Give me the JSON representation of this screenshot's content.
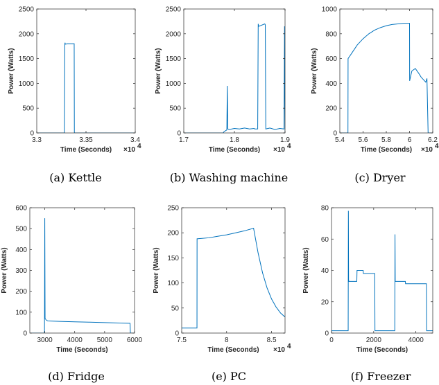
{
  "figure": {
    "series_color": "#0072bd",
    "axis_color": "#262626"
  },
  "chart_data": [
    {
      "type": "line",
      "caption": "(a)  Kettle",
      "title": "",
      "xlabel": "Time (Seconds)",
      "ylabel": "Power (Watts)",
      "x_exponent": "×10",
      "x_exponent_power": "4",
      "xlim": [
        3.3,
        3.4
      ],
      "ylim": [
        0,
        2500
      ],
      "xticks": [
        3.3,
        3.35,
        3.4
      ],
      "xtick_labels": [
        "3.3",
        "3.35",
        "3.4"
      ],
      "yticks": [
        0,
        500,
        1000,
        1500,
        2000,
        2500
      ],
      "ytick_labels": [
        "0",
        "500",
        "1000",
        "1500",
        "2000",
        "2500"
      ],
      "series": [
        {
          "x": [
            3.3,
            3.328,
            3.3285,
            3.3287,
            3.329,
            3.331,
            3.338,
            3.3382,
            3.4
          ],
          "y": [
            0,
            0,
            1800,
            1820,
            1790,
            1800,
            1800,
            0,
            0
          ]
        }
      ]
    },
    {
      "type": "line",
      "caption": "(b)  Washing machine",
      "title": "",
      "xlabel": "Time (Seconds)",
      "ylabel": "Power (Watts)",
      "x_exponent": "×10",
      "x_exponent_power": "4",
      "xlim": [
        1.7,
        1.9
      ],
      "ylim": [
        0,
        2500
      ],
      "xticks": [
        1.7,
        1.8,
        1.9
      ],
      "xtick_labels": [
        "1.7",
        "1.8",
        "1.9"
      ],
      "yticks": [
        0,
        500,
        1000,
        1500,
        2000,
        2500
      ],
      "ytick_labels": [
        "0",
        "500",
        "1000",
        "1500",
        "2000",
        "2500"
      ],
      "series": [
        {
          "x": [
            1.7,
            1.778,
            1.779,
            1.78,
            1.785,
            1.786,
            1.787,
            1.79,
            1.8,
            1.81,
            1.82,
            1.83,
            1.839,
            1.84,
            1.846,
            1.847,
            1.848,
            1.86,
            1.861,
            1.862,
            1.87,
            1.88,
            1.89,
            1.898,
            1.899,
            1.9
          ],
          "y": [
            0,
            0,
            20,
            30,
            60,
            950,
            80,
            70,
            90,
            80,
            100,
            80,
            90,
            80,
            80,
            2200,
            2150,
            2200,
            2180,
            80,
            100,
            70,
            90,
            80,
            2150,
            0
          ]
        }
      ]
    },
    {
      "type": "line",
      "caption": "(c)  Dryer",
      "title": "",
      "xlabel": "Time (Seconds)",
      "ylabel": "Power (Watts)",
      "x_exponent": "×10",
      "x_exponent_power": "4",
      "xlim": [
        5.4,
        6.2
      ],
      "ylim": [
        0,
        1000
      ],
      "xticks": [
        5.4,
        5.6,
        5.8,
        6.0,
        6.2
      ],
      "xtick_labels": [
        "5.4",
        "5.6",
        "5.8",
        "6",
        "6.2"
      ],
      "yticks": [
        0,
        200,
        400,
        600,
        800,
        1000
      ],
      "ytick_labels": [
        "0",
        "200",
        "400",
        "600",
        "800",
        "1000"
      ],
      "series": [
        {
          "x": [
            5.4,
            5.47,
            5.471,
            5.5,
            5.55,
            5.6,
            5.65,
            5.7,
            5.75,
            5.8,
            5.85,
            5.9,
            5.95,
            6.0,
            6.001,
            6.02,
            6.05,
            6.08,
            6.1,
            6.12,
            6.14,
            6.15,
            6.16,
            6.2
          ],
          "y": [
            0,
            0,
            600,
            640,
            710,
            760,
            800,
            830,
            850,
            865,
            875,
            880,
            885,
            885,
            420,
            500,
            520,
            480,
            450,
            430,
            410,
            440,
            0,
            0
          ]
        }
      ]
    },
    {
      "type": "line",
      "caption": "(d)  Fridge",
      "title": "",
      "xlabel": "Time (Seconds)",
      "ylabel": "Power (Watts)",
      "x_exponent": "",
      "x_exponent_power": "",
      "xlim": [
        2500,
        6000
      ],
      "ylim": [
        0,
        600
      ],
      "xticks": [
        3000,
        4000,
        5000,
        6000
      ],
      "xtick_labels": [
        "3000",
        "4000",
        "5000",
        "6000"
      ],
      "yticks": [
        0,
        100,
        200,
        300,
        400,
        500,
        600
      ],
      "ytick_labels": [
        "0",
        "100",
        "200",
        "300",
        "400",
        "500",
        "600"
      ],
      "series": [
        {
          "x": [
            2500,
            2990,
            3000,
            3010,
            3050,
            3100,
            3500,
            4000,
            4500,
            5000,
            5500,
            5850,
            5860,
            6000
          ],
          "y": [
            0,
            0,
            550,
            70,
            62,
            58,
            56,
            54,
            52,
            50,
            48,
            47,
            0,
            0
          ]
        }
      ]
    },
    {
      "type": "line",
      "caption": "(e)  PC",
      "title": "",
      "xlabel": "Time (Seconds)",
      "ylabel": "Power (Watts)",
      "x_exponent": "×10",
      "x_exponent_power": "4",
      "xlim": [
        7.5,
        8.65
      ],
      "ylim": [
        0,
        250
      ],
      "xticks": [
        7.5,
        8.0,
        8.5
      ],
      "xtick_labels": [
        "7.5",
        "8",
        "8.5"
      ],
      "yticks": [
        0,
        50,
        100,
        150,
        200,
        250
      ],
      "ytick_labels": [
        "0",
        "50",
        "100",
        "150",
        "200",
        "250"
      ],
      "series": [
        {
          "x": [
            7.5,
            7.67,
            7.671,
            7.8,
            7.9,
            8.0,
            8.1,
            8.2,
            8.3,
            8.35,
            8.4,
            8.45,
            8.5,
            8.55,
            8.6,
            8.65
          ],
          "y": [
            10,
            10,
            188,
            190,
            193,
            196,
            200,
            204,
            209,
            160,
            120,
            90,
            68,
            52,
            40,
            32
          ]
        }
      ]
    },
    {
      "type": "line",
      "caption": "(f)  Freezer",
      "title": "",
      "xlabel": "Time (Seconds)",
      "ylabel": "Power (Watts)",
      "x_exponent": "",
      "x_exponent_power": "",
      "xlim": [
        0,
        4800
      ],
      "ylim": [
        0,
        80
      ],
      "xticks": [
        0,
        2000,
        4000
      ],
      "xtick_labels": [
        "0",
        "2000",
        "4000"
      ],
      "yticks": [
        0,
        20,
        40,
        60,
        80
      ],
      "ytick_labels": [
        "0",
        "20",
        "40",
        "60",
        "80"
      ],
      "series": [
        {
          "x": [
            0,
            790,
            800,
            810,
            820,
            1200,
            1210,
            1500,
            1510,
            2050,
            2060,
            3000,
            3010,
            3020,
            3500,
            3510,
            4500,
            4510,
            4800
          ],
          "y": [
            1.5,
            1.5,
            78,
            34,
            33,
            33,
            40,
            40,
            38,
            38,
            1.5,
            1.5,
            63,
            33,
            33,
            31.5,
            31.5,
            1.5,
            1.5
          ]
        }
      ]
    }
  ]
}
